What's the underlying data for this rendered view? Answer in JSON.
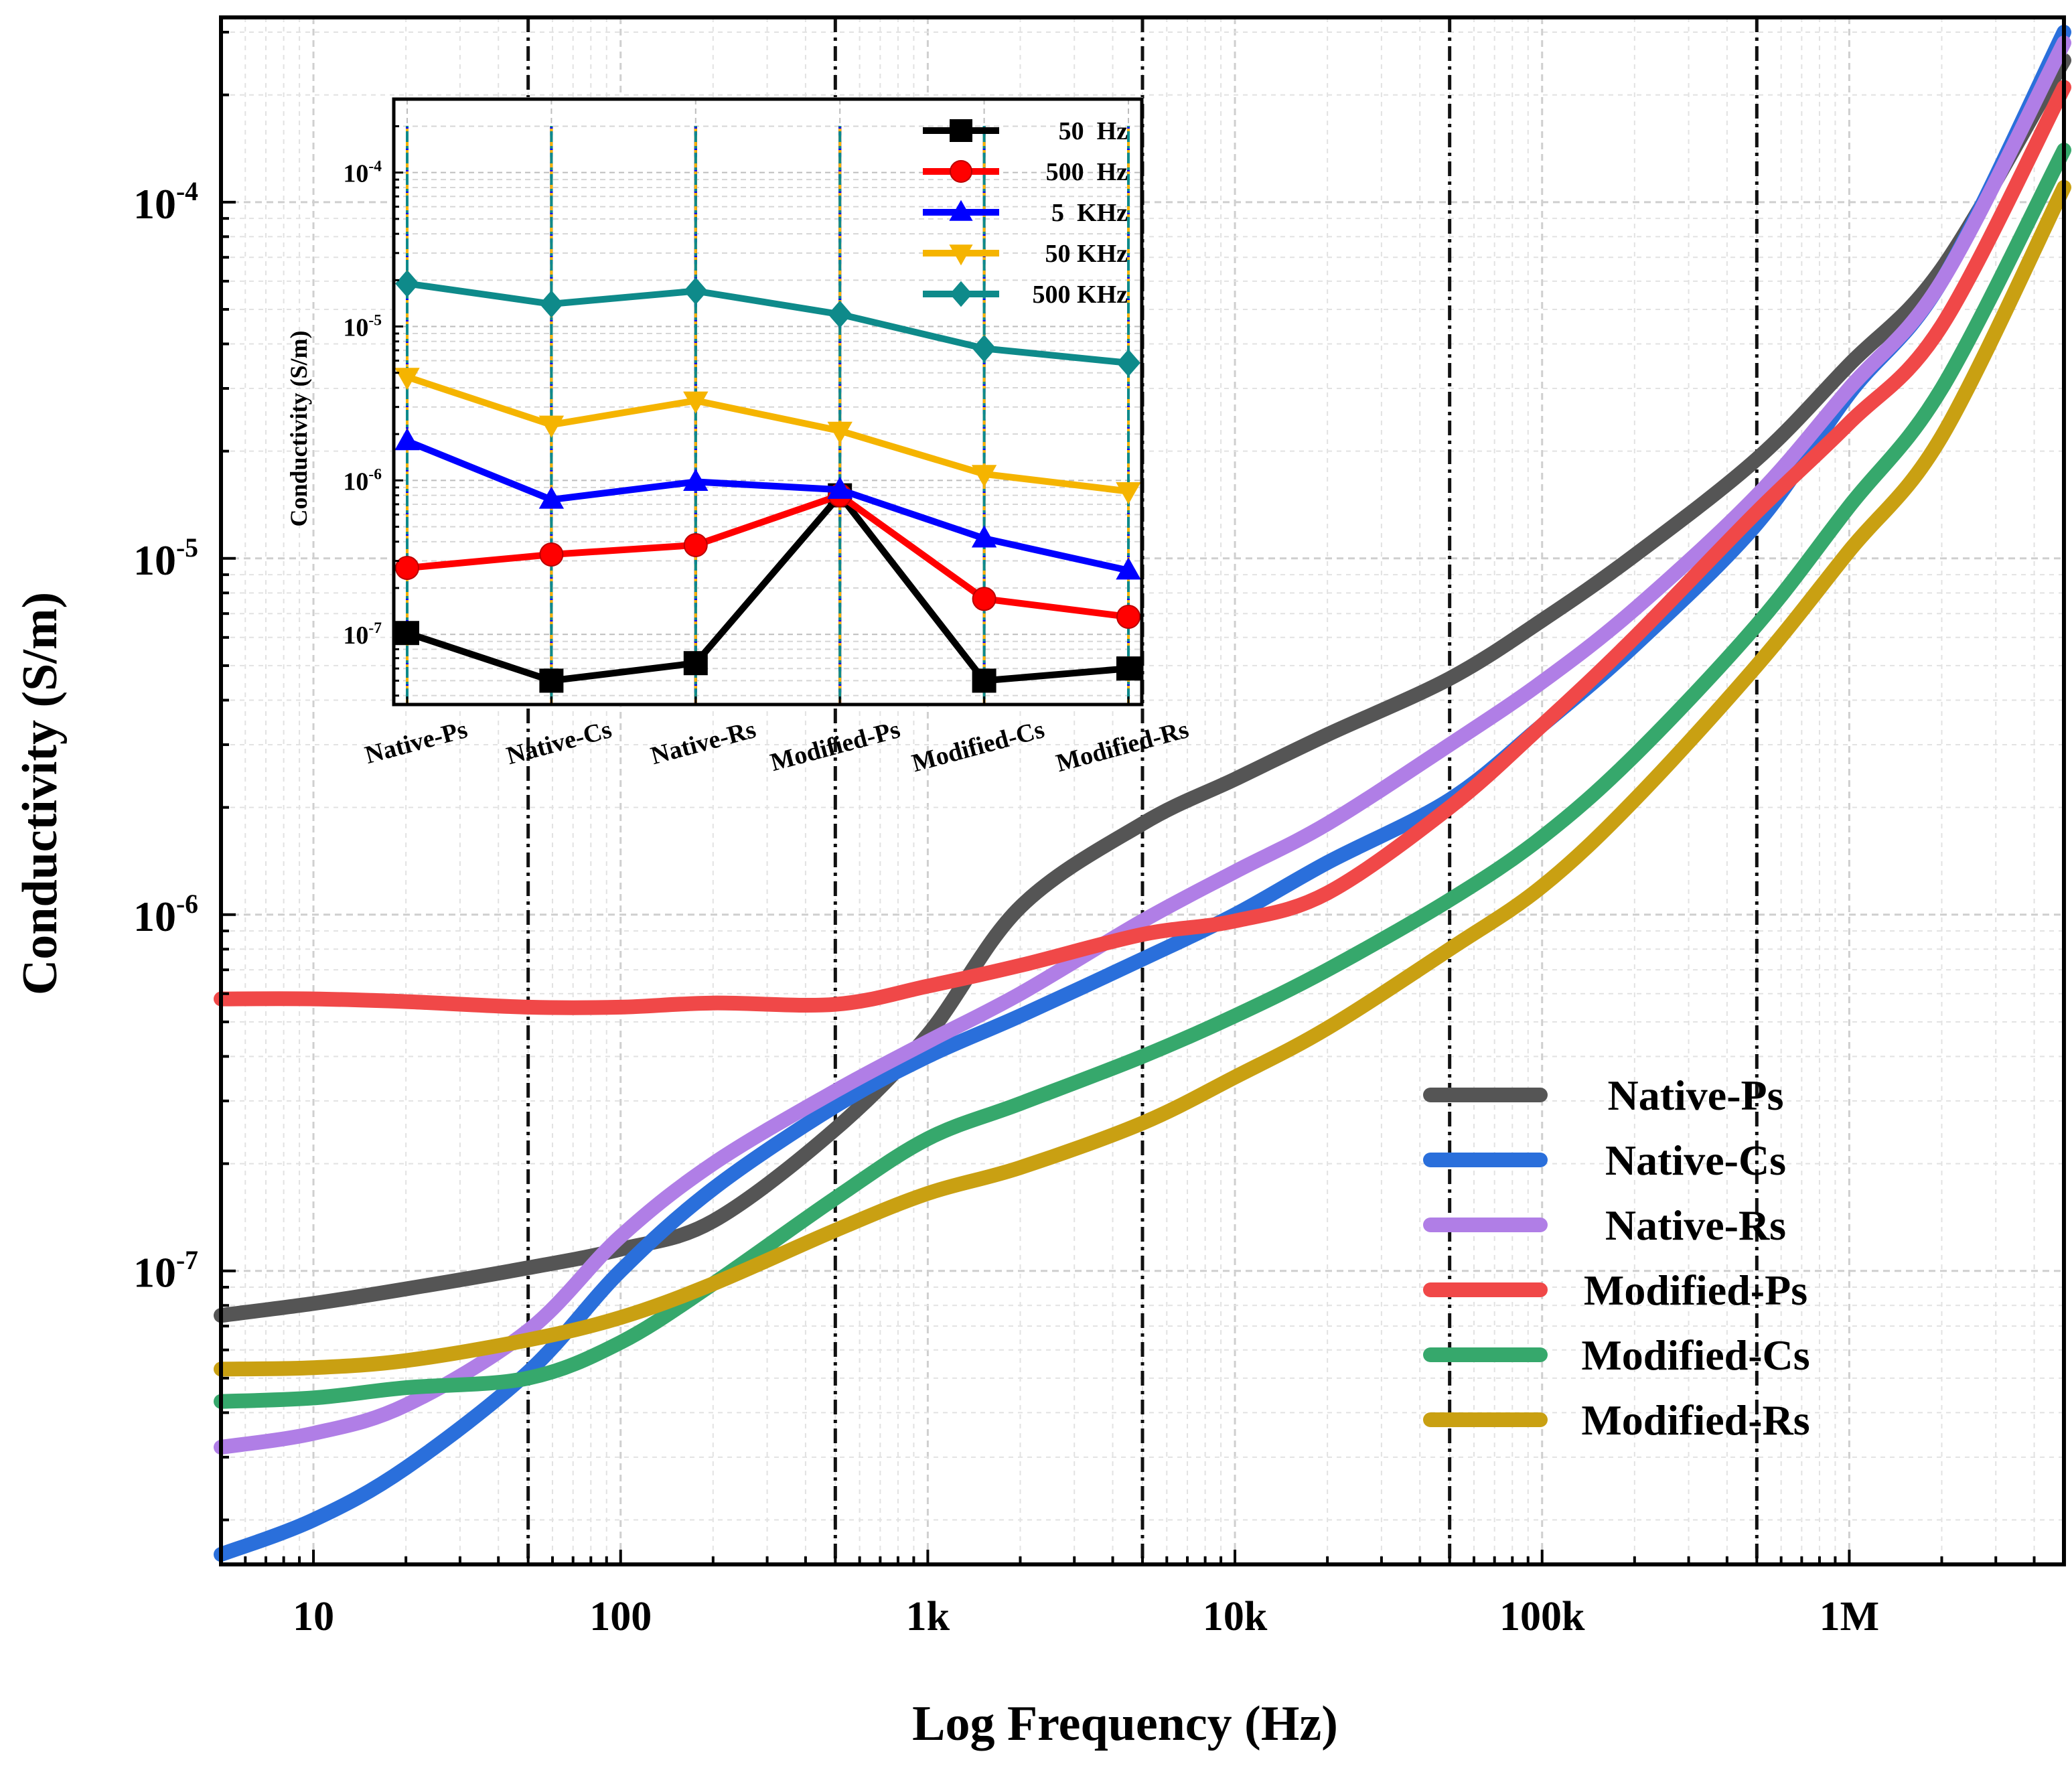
{
  "colors": {
    "Native-Ps": "#555555",
    "Native-Cs": "#2a6fdb",
    "Native-Rs": "#b07ee6",
    "Modified-Ps": "#f04848",
    "Modified-Cs": "#36a86c",
    "Modified-Rs": "#c9a012",
    "inset": {
      "50 Hz": "#000000",
      "500 Hz": "#ff0000",
      "5 KHz": "#0000ff",
      "50 KHz": "#f5b400",
      "500 KHz": "#0e8a8a"
    }
  },
  "chart_data": [
    {
      "id": "main",
      "type": "line",
      "title": "",
      "xlabel": "Log Frequency (Hz)",
      "ylabel": "Conductivity (S/m)",
      "xscale": "log",
      "yscale": "log",
      "xlim": [
        5,
        5000000
      ],
      "ylim": [
        1.5e-08,
        0.00033
      ],
      "grid": true,
      "legend_position": "bottom-right",
      "x_ticks": [
        {
          "value": 10,
          "label": "10"
        },
        {
          "value": 100,
          "label": "100"
        },
        {
          "value": 1000,
          "label": "1k"
        },
        {
          "value": 10000,
          "label": "10k"
        },
        {
          "value": 100000,
          "label": "100k"
        },
        {
          "value": 1000000,
          "label": "1M"
        }
      ],
      "y_ticks": [
        {
          "value": 1e-07,
          "mantissa": "10",
          "exponent": "-7"
        },
        {
          "value": 1e-06,
          "mantissa": "10",
          "exponent": "-6"
        },
        {
          "value": 1e-05,
          "mantissa": "10",
          "exponent": "-5"
        },
        {
          "value": 0.0001,
          "mantissa": "10",
          "exponent": "-4"
        }
      ],
      "reference_lines_x": [
        50,
        500,
        5000,
        50000,
        500000
      ],
      "series": [
        {
          "name": "Native-Ps",
          "x": [
            5,
            10,
            20,
            50,
            100,
            200,
            500,
            1000,
            2000,
            5000,
            10000,
            20000,
            50000,
            100000,
            200000,
            500000,
            1000000,
            2000000,
            5000000
          ],
          "y": [
            7.5e-08,
            8.1e-08,
            8.9e-08,
            1.02e-07,
            1.15e-07,
            1.38e-07,
            2.5e-07,
            4.6e-07,
            1.05e-06,
            1.8e-06,
            2.4e-06,
            3.2e-06,
            4.6e-06,
            6.7e-06,
            1.02e-05,
            1.9e-05,
            3.5e-05,
            6.5e-05,
            0.00025
          ]
        },
        {
          "name": "Native-Cs",
          "x": [
            5,
            10,
            20,
            50,
            100,
            200,
            500,
            1000,
            2000,
            5000,
            10000,
            20000,
            50000,
            100000,
            200000,
            500000,
            1000000,
            2000000,
            5000000
          ],
          "y": [
            1.6e-08,
            2e-08,
            2.8e-08,
            5.2e-08,
            1e-07,
            1.7e-07,
            2.9e-07,
            4e-07,
            5.2e-07,
            7.5e-07,
            1e-06,
            1.4e-06,
            2.1e-06,
            3.4e-06,
            5.7e-06,
            1.25e-05,
            2.9e-05,
            6e-05,
            0.0003
          ]
        },
        {
          "name": "Native-Rs",
          "x": [
            5,
            10,
            20,
            50,
            100,
            200,
            500,
            1000,
            2000,
            5000,
            10000,
            20000,
            50000,
            100000,
            200000,
            500000,
            1000000,
            2000000,
            5000000
          ],
          "y": [
            3.2e-08,
            3.5e-08,
            4.2e-08,
            6.8e-08,
            1.25e-07,
            2e-07,
            3.2e-07,
            4.4e-07,
            6e-07,
            9.6e-07,
            1.32e-06,
            1.8e-06,
            3e-06,
            4.5e-06,
            7.2e-06,
            1.5e-05,
            3e-05,
            6e-05,
            0.00028
          ]
        },
        {
          "name": "Modified-Ps",
          "x": [
            5,
            10,
            20,
            50,
            100,
            200,
            500,
            1000,
            2000,
            5000,
            10000,
            20000,
            50000,
            100000,
            200000,
            500000,
            1000000,
            2000000,
            5000000
          ],
          "y": [
            5.8e-07,
            5.8e-07,
            5.7e-07,
            5.5e-07,
            5.5e-07,
            5.65e-07,
            5.6e-07,
            6.3e-07,
            7.2e-07,
            8.8e-07,
            9.6e-07,
            1.15e-06,
            2e-06,
            3.4e-06,
            6e-06,
            1.35e-05,
            2.4e-05,
            4.5e-05,
            0.00021
          ]
        },
        {
          "name": "Modified-Cs",
          "x": [
            5,
            10,
            20,
            50,
            100,
            200,
            500,
            1000,
            2000,
            5000,
            10000,
            20000,
            50000,
            100000,
            200000,
            500000,
            1000000,
            2000000,
            5000000
          ],
          "y": [
            4.3e-08,
            4.4e-08,
            4.7e-08,
            5e-08,
            6.3e-08,
            9.2e-08,
            1.6e-07,
            2.35e-07,
            2.95e-07,
            4e-07,
            5.2e-07,
            7e-07,
            1.1e-06,
            1.65e-06,
            2.8e-06,
            6.5e-06,
            1.4e-05,
            3e-05,
            0.00014
          ]
        },
        {
          "name": "Modified-Rs",
          "x": [
            5,
            10,
            20,
            50,
            100,
            200,
            500,
            1000,
            2000,
            5000,
            10000,
            20000,
            50000,
            100000,
            200000,
            500000,
            1000000,
            2000000,
            5000000
          ],
          "y": [
            5.3e-08,
            5.35e-08,
            5.6e-08,
            6.4e-08,
            7.4e-08,
            9.2e-08,
            1.3e-07,
            1.65e-07,
            1.95e-07,
            2.6e-07,
            3.5e-07,
            4.8e-07,
            8e-07,
            1.2e-06,
            2.1e-06,
            5e-06,
            1.05e-05,
            2.2e-05,
            0.00011
          ]
        }
      ]
    },
    {
      "id": "inset",
      "type": "line",
      "title": "",
      "xlabel": "",
      "ylabel": "Conductivity (S/m)",
      "yscale": "log",
      "ylim": [
        3.5e-08,
        0.0003
      ],
      "grid": true,
      "legend_position": "top-right",
      "categories": [
        "Native-Ps",
        "Native-Cs",
        "Native-Rs",
        "Modified-Ps",
        "Modified-Cs",
        "Modified-Rs"
      ],
      "y_ticks": [
        {
          "value": 1e-07,
          "mantissa": "10",
          "exponent": "-7"
        },
        {
          "value": 1e-06,
          "mantissa": "10",
          "exponent": "-6"
        },
        {
          "value": 1e-05,
          "mantissa": "10",
          "exponent": "-5"
        },
        {
          "value": 0.0001,
          "mantissa": "10",
          "exponent": "-4"
        }
      ],
      "series": [
        {
          "name": "50  Hz",
          "key": "50 Hz",
          "marker": "square",
          "values": [
            1.02e-07,
            5e-08,
            6.5e-08,
            8e-07,
            5e-08,
            6e-08
          ]
        },
        {
          "name": "500  Hz",
          "key": "500 Hz",
          "marker": "circle",
          "values": [
            2.7e-07,
            3.3e-07,
            3.8e-07,
            8e-07,
            1.7e-07,
            1.3e-07
          ]
        },
        {
          "name": "5  KHz",
          "key": "5 KHz",
          "marker": "triangle-up",
          "values": [
            1.8e-06,
            7.5e-07,
            9.8e-07,
            8.7e-07,
            4.2e-07,
            2.6e-07
          ]
        },
        {
          "name": "50 KHz",
          "key": "50 KHz",
          "marker": "triangle-down",
          "values": [
            4.7e-06,
            2.3e-06,
            3.3e-06,
            2.1e-06,
            1.1e-06,
            8.5e-07
          ]
        },
        {
          "name": "500 KHz",
          "key": "500 KHz",
          "marker": "diamond",
          "values": [
            1.9e-05,
            1.4e-05,
            1.7e-05,
            1.2e-05,
            7.2e-06,
            5.8e-06
          ]
        }
      ]
    }
  ]
}
